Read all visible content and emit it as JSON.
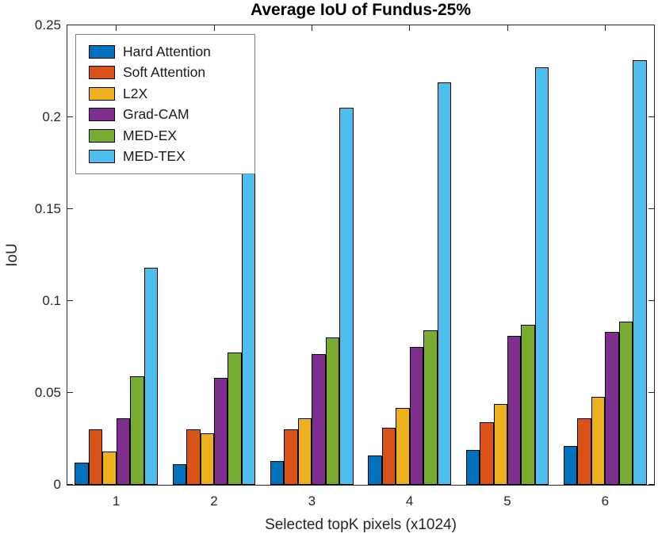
{
  "figure": {
    "title": "Average IoU of Fundus-25%",
    "xlabel": "Selected topK pixels (x1024)",
    "ylabel": "IoU"
  },
  "chart_data": {
    "type": "bar",
    "title": "Average IoU of Fundus-25%",
    "xlabel": "Selected topK pixels (x1024)",
    "ylabel": "IoU",
    "categories": [
      "1",
      "2",
      "3",
      "4",
      "5",
      "6"
    ],
    "series": [
      {
        "name": "Hard Attention",
        "color": "#0072BD",
        "values": [
          0.012,
          0.011,
          0.013,
          0.016,
          0.019,
          0.021
        ]
      },
      {
        "name": "Soft Attention",
        "color": "#D95319",
        "values": [
          0.03,
          0.03,
          0.03,
          0.031,
          0.034,
          0.036
        ]
      },
      {
        "name": "L2X",
        "color": "#EDB120",
        "values": [
          0.018,
          0.028,
          0.036,
          0.042,
          0.044,
          0.048
        ]
      },
      {
        "name": "Grad-CAM",
        "color": "#7E2F8E",
        "values": [
          0.036,
          0.058,
          0.071,
          0.075,
          0.081,
          0.083
        ]
      },
      {
        "name": "MED-EX",
        "color": "#77AC30",
        "values": [
          0.059,
          0.072,
          0.08,
          0.084,
          0.087,
          0.089
        ]
      },
      {
        "name": "MED-TEX",
        "color": "#4DBEEE",
        "values": [
          0.118,
          0.178,
          0.205,
          0.219,
          0.227,
          0.231
        ]
      }
    ],
    "ylim": [
      0,
      0.25
    ],
    "ytick_step": 0.05,
    "ytick_labels": [
      "0",
      "0.05",
      "0.1",
      "0.15",
      "0.2",
      "0.25"
    ],
    "xtick_labels": [
      "1",
      "2",
      "3",
      "4",
      "5",
      "6"
    ],
    "legend_position": "top-left-inside",
    "grid": false,
    "bar_edge_color": "#000000",
    "axis_color": "#262626",
    "background_color": "#ffffff"
  }
}
